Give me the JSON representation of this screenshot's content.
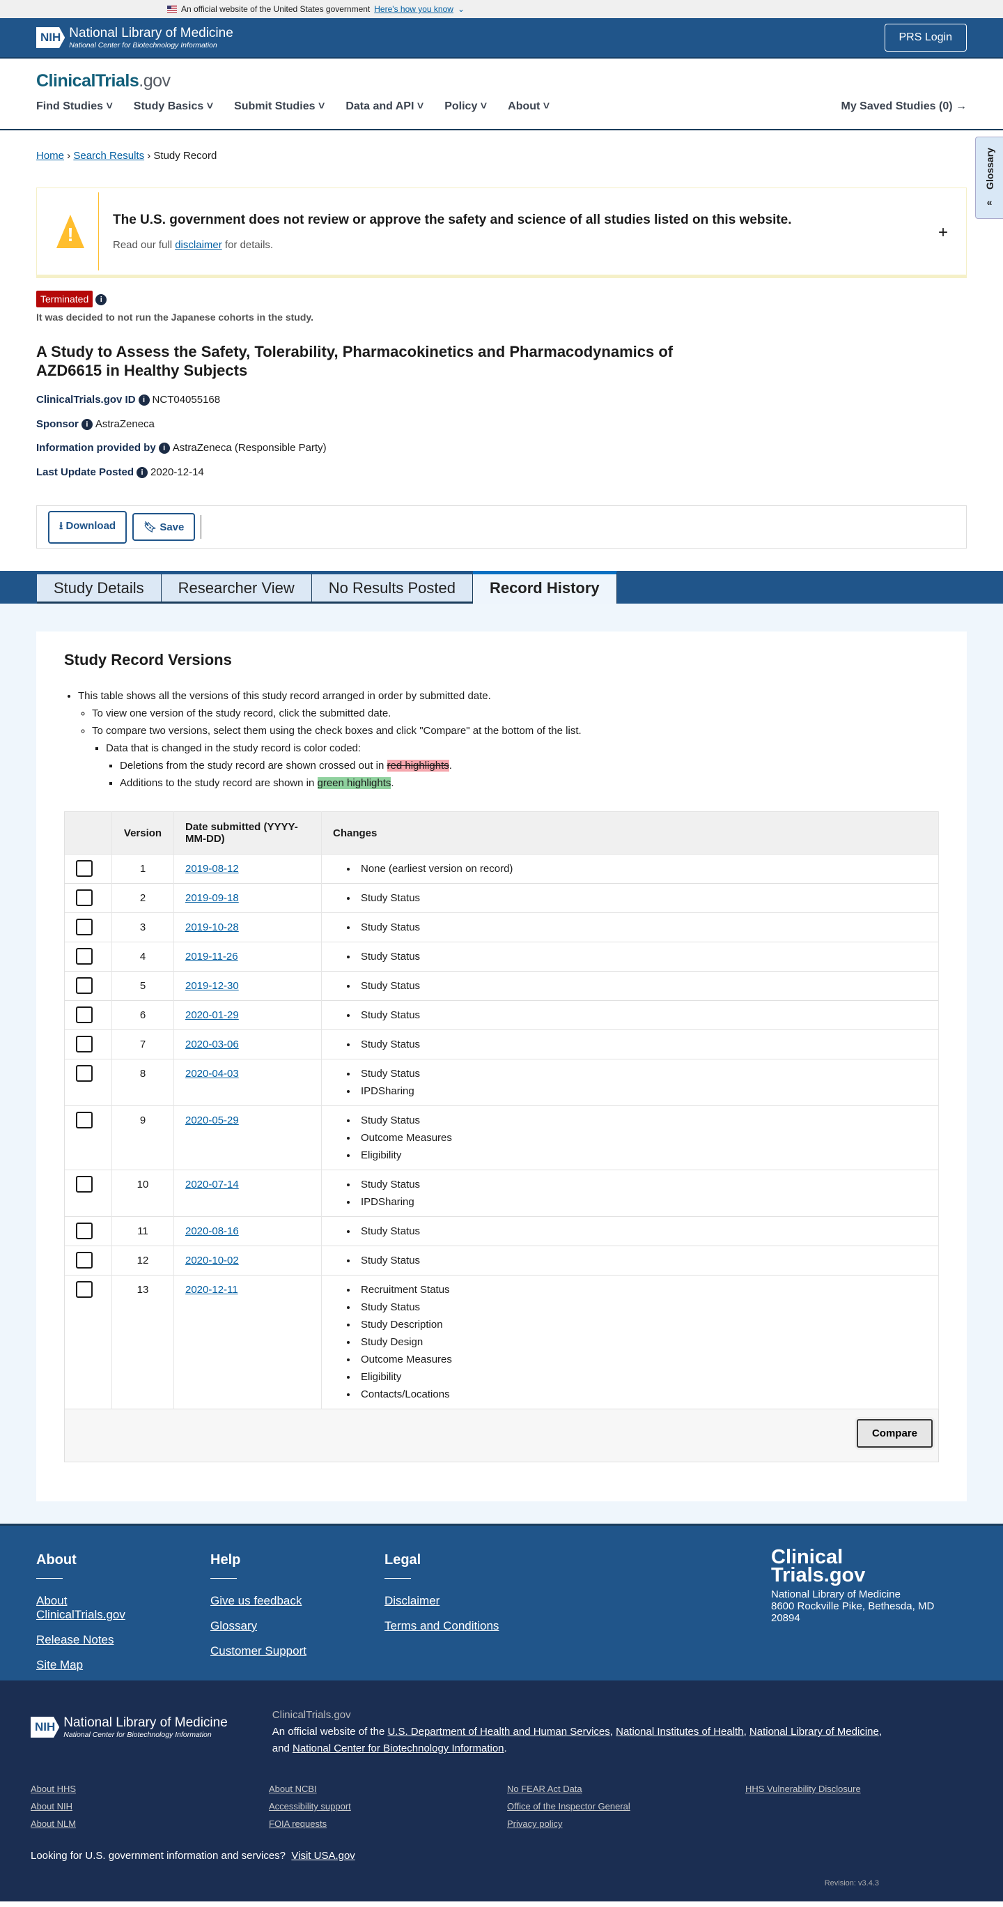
{
  "gov_banner": {
    "text": "An official website of the United States government",
    "link": "Here's how you know"
  },
  "header": {
    "org": "National Library of Medicine",
    "sub": "National Center for Biotechnology Information",
    "nih": "NIH",
    "login": "PRS Login"
  },
  "site": {
    "logo_a": "ClinicalTrials",
    "logo_b": ".gov",
    "nav": [
      "Find Studies",
      "Study Basics",
      "Submit Studies",
      "Data and API",
      "Policy",
      "About"
    ],
    "saved": "My Saved Studies (0)"
  },
  "breadcrumb": [
    "Home",
    "Search Results",
    "Study Record"
  ],
  "glossary": "Glossary",
  "alert": {
    "title": "The U.S. government does not review or approve the safety and science of all studies listed on this website.",
    "pre": "Read our full ",
    "link": "disclaimer",
    "post": " for details."
  },
  "status": {
    "badge": "Terminated",
    "reason": "It was decided to not run the Japanese cohorts in the study.",
    "color": "#b50909"
  },
  "title": "A Study to Assess the Safety, Tolerability, Pharmacokinetics and Pharmacodynamics of AZD6615 in Healthy Subjects",
  "meta": [
    {
      "label": "ClinicalTrials.gov ID",
      "value": "NCT04055168"
    },
    {
      "label": "Sponsor",
      "value": "AstraZeneca"
    },
    {
      "label": "Information provided by",
      "value": "AstraZeneca (Responsible Party)"
    },
    {
      "label": "Last Update Posted",
      "value": "2020-12-14"
    }
  ],
  "actions": {
    "download": "Download",
    "save": "Save"
  },
  "tabs": [
    "Study Details",
    "Researcher View",
    "No Results Posted",
    "Record History"
  ],
  "history": {
    "heading": "Study Record Versions",
    "intro": "This table shows all the versions of this study record arranged in order by submitted date.",
    "view": "To view one version of the study record, click the submitted date.",
    "compare": "To compare two versions, select them using the check boxes and click \"Compare\" at the bottom of the list.",
    "coded": "Data that is changed in the study record is color coded:",
    "del_pre": "Deletions from the study record are shown crossed out in ",
    "del_hl": "red highlights",
    "add_pre": "Additions to the study record are shown in ",
    "add_hl": "green highlights",
    "columns": [
      "Version",
      "Date submitted (YYYY-MM-DD)",
      "Changes"
    ],
    "rows": [
      {
        "v": "1",
        "date": "2019-08-12",
        "changes": [
          "None (earliest version on record)"
        ]
      },
      {
        "v": "2",
        "date": "2019-09-18",
        "changes": [
          "Study Status"
        ]
      },
      {
        "v": "3",
        "date": "2019-10-28",
        "changes": [
          "Study Status"
        ]
      },
      {
        "v": "4",
        "date": "2019-11-26",
        "changes": [
          "Study Status"
        ]
      },
      {
        "v": "5",
        "date": "2019-12-30",
        "changes": [
          "Study Status"
        ]
      },
      {
        "v": "6",
        "date": "2020-01-29",
        "changes": [
          "Study Status"
        ]
      },
      {
        "v": "7",
        "date": "2020-03-06",
        "changes": [
          "Study Status"
        ]
      },
      {
        "v": "8",
        "date": "2020-04-03",
        "changes": [
          "Study Status",
          "IPDSharing"
        ]
      },
      {
        "v": "9",
        "date": "2020-05-29",
        "changes": [
          "Study Status",
          "Outcome Measures",
          "Eligibility"
        ]
      },
      {
        "v": "10",
        "date": "2020-07-14",
        "changes": [
          "Study Status",
          "IPDSharing"
        ]
      },
      {
        "v": "11",
        "date": "2020-08-16",
        "changes": [
          "Study Status"
        ]
      },
      {
        "v": "12",
        "date": "2020-10-02",
        "changes": [
          "Study Status"
        ]
      },
      {
        "v": "13",
        "date": "2020-12-11",
        "changes": [
          "Recruitment Status",
          "Study Status",
          "Study Description",
          "Study Design",
          "Outcome Measures",
          "Eligibility",
          "Contacts/Locations"
        ]
      }
    ],
    "compare_btn": "Compare"
  },
  "footer": {
    "cols": [
      {
        "title": "About",
        "links": [
          "About ClinicalTrials.gov",
          "Release Notes",
          "Site Map"
        ]
      },
      {
        "title": "Help",
        "links": [
          "Give us feedback",
          "Glossary",
          "Customer Support"
        ]
      },
      {
        "title": "Legal",
        "links": [
          "Disclaimer",
          "Terms and Conditions"
        ]
      }
    ],
    "logo_a": "Clinical",
    "logo_b": "Trials.gov",
    "address": [
      "National Library of Medicine",
      "8600 Rockville Pike, Bethesda, MD",
      "20894"
    ],
    "site": "ClinicalTrials.gov",
    "official": "An official website of the ",
    "hhs": "U.S. Department of Health and Human Services",
    "nih": "National Institutes of Health",
    "nlm": "National Library of Medicine",
    "and": "and ",
    "ncbi": "National Center for Biotechnology Information",
    "links": [
      "About HHS",
      "About NCBI",
      "No FEAR Act Data",
      "HHS Vulnerability Disclosure",
      "About NIH",
      "Accessibility support",
      "Office of the Inspector General",
      "",
      "About NLM",
      "FOIA requests",
      "Privacy policy",
      ""
    ],
    "usa_q": "Looking for U.S. government information and services?",
    "usa_link": "Visit USA.gov",
    "revision": "Revision: v3.4.3"
  }
}
